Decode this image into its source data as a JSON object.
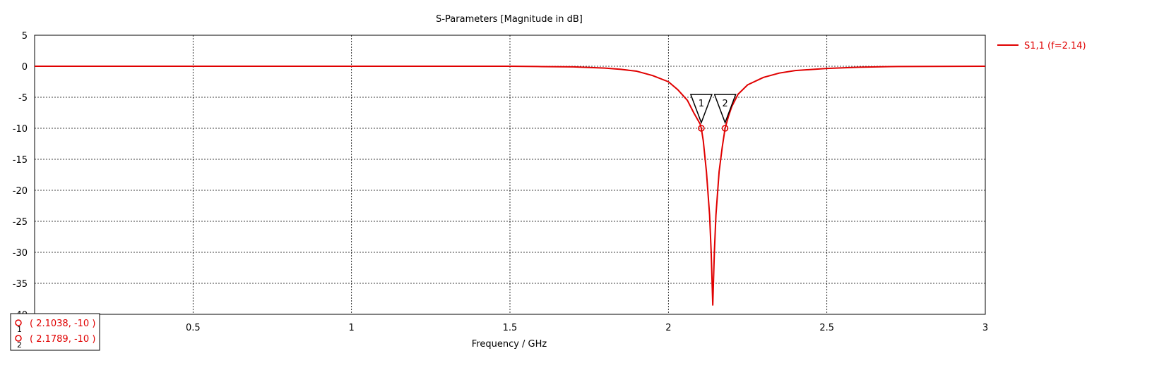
{
  "chart_data": {
    "type": "line",
    "title": "S-Parameters [Magnitude in dB]",
    "xlabel": "Frequency / GHz",
    "ylabel": "",
    "xlim": [
      0,
      3
    ],
    "ylim": [
      -40,
      5
    ],
    "x_ticks": [
      "0.5",
      "1",
      "1.5",
      "2",
      "2.5",
      "3"
    ],
    "y_ticks": [
      "5",
      "0",
      "-5",
      "-10",
      "-15",
      "-20",
      "-25",
      "-30",
      "-35",
      "-40"
    ],
    "grid": true,
    "legend_position": "top-right",
    "series": [
      {
        "name": "S1,1 (f=2.14)",
        "color": "#e00000",
        "x": [
          0,
          0.5,
          1.0,
          1.5,
          1.6,
          1.7,
          1.8,
          1.85,
          1.9,
          1.95,
          2.0,
          2.03,
          2.06,
          2.08,
          2.1,
          2.1038,
          2.11,
          2.12,
          2.13,
          2.135,
          2.14,
          2.145,
          2.15,
          2.16,
          2.17,
          2.1789,
          2.19,
          2.2,
          2.22,
          2.25,
          2.3,
          2.35,
          2.4,
          2.5,
          2.6,
          2.7,
          3.0
        ],
        "y": [
          0,
          0,
          0,
          0,
          -0.05,
          -0.1,
          -0.3,
          -0.5,
          -0.8,
          -1.5,
          -2.5,
          -3.8,
          -5.5,
          -7.5,
          -9.3,
          -10,
          -12,
          -17,
          -24,
          -30,
          -38.5,
          -30,
          -24,
          -17,
          -13,
          -10,
          -8,
          -6.5,
          -4.5,
          -3,
          -1.8,
          -1.1,
          -0.7,
          -0.35,
          -0.15,
          -0.05,
          0
        ]
      }
    ],
    "markers": [
      {
        "id": "1",
        "x": 2.1038,
        "y": -10,
        "label": "( 2.1038, -10 )"
      },
      {
        "id": "2",
        "x": 2.1789,
        "y": -10,
        "label": "( 2.1789, -10 )"
      }
    ]
  }
}
